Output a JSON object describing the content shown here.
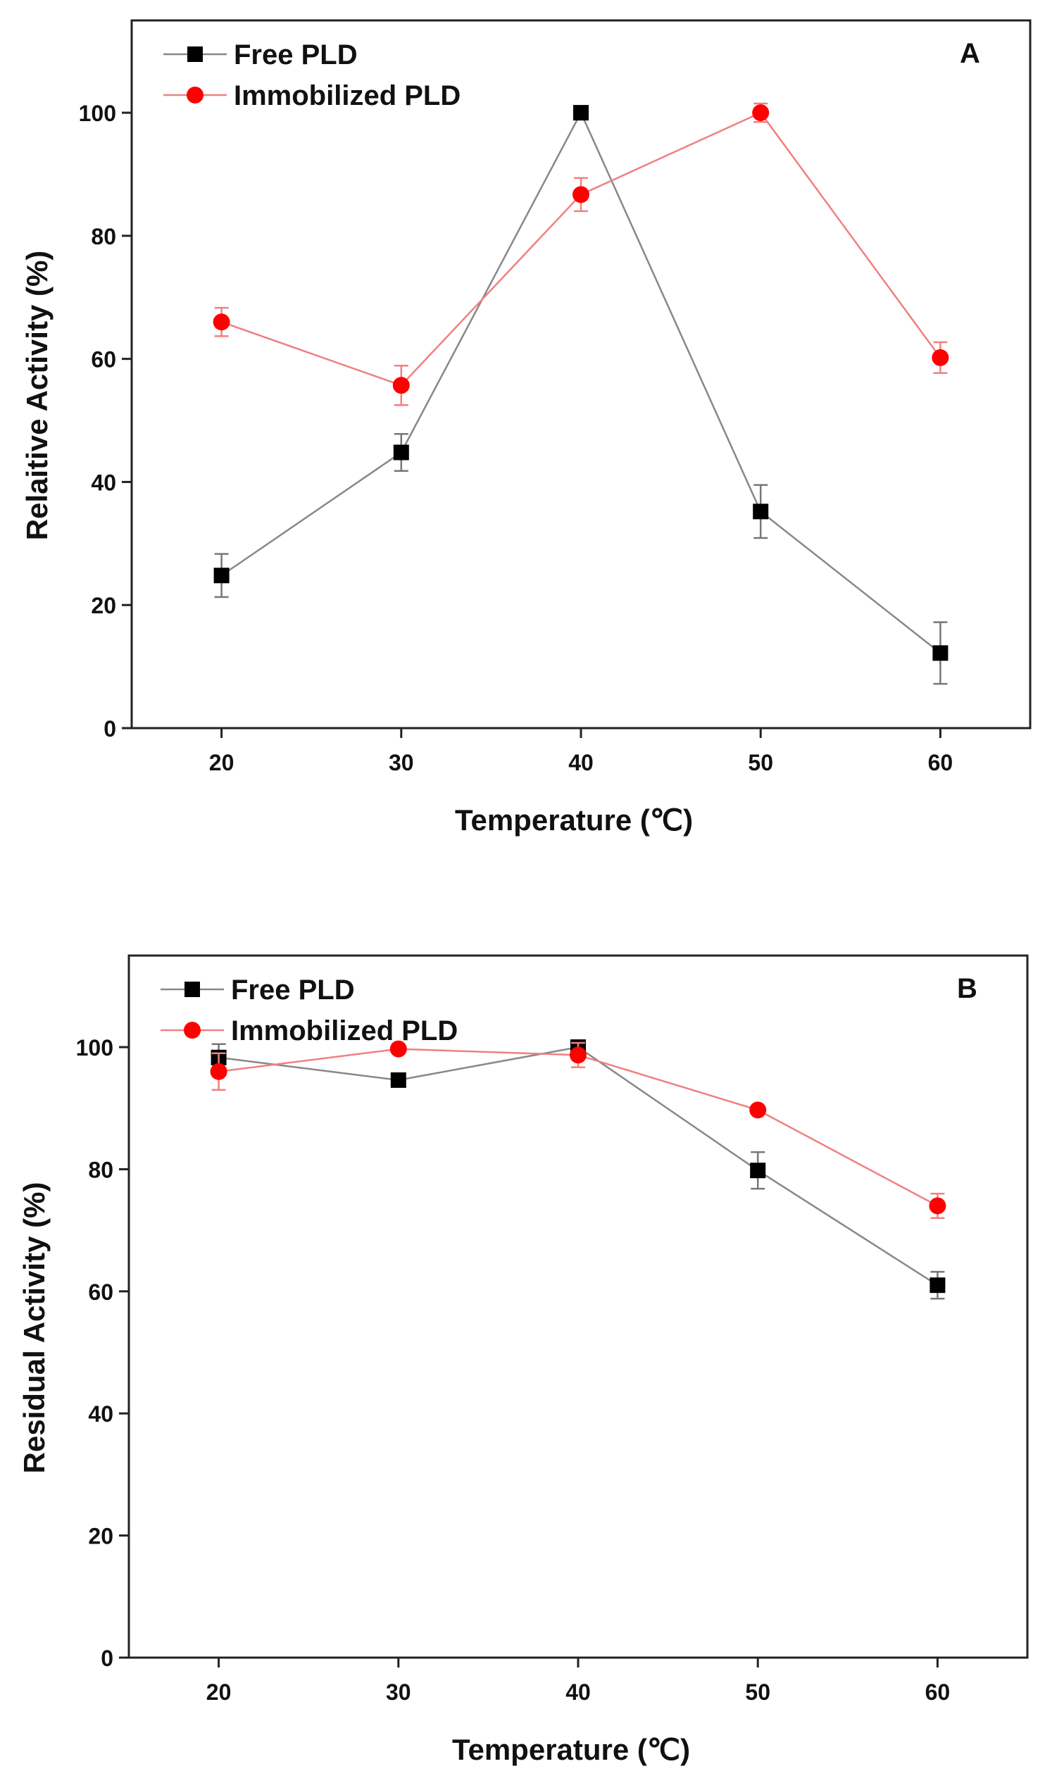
{
  "chart_data": [
    {
      "type": "line",
      "panel_label": "A",
      "xlabel": "Temperature (℃)",
      "ylabel": "Relaitive Activity (%)",
      "x": [
        20,
        30,
        40,
        50,
        60
      ],
      "xticks": [
        "20",
        "30",
        "40",
        "50",
        "60"
      ],
      "yticks": [
        "0",
        "20",
        "40",
        "60",
        "80",
        "100"
      ],
      "xlim": [
        15,
        65
      ],
      "ylim": [
        0,
        115
      ],
      "legend_position": "top-left",
      "series": [
        {
          "name": "Free PLD",
          "color": "#000000",
          "line_color": "#888888",
          "marker": "square",
          "values": [
            24.8,
            44.8,
            100,
            35.2,
            12.2
          ],
          "errors": [
            3.5,
            3.0,
            0.5,
            4.3,
            5.0
          ]
        },
        {
          "name": "Immobilized PLD",
          "color": "#ff0000",
          "line_color": "#f08080",
          "marker": "circle",
          "values": [
            66.0,
            55.7,
            86.7,
            100,
            60.2
          ],
          "errors": [
            2.3,
            3.2,
            2.7,
            1.5,
            2.5
          ]
        }
      ]
    },
    {
      "type": "line",
      "panel_label": "B",
      "xlabel": "Temperature (℃)",
      "ylabel": "Residual Activity (%)",
      "x": [
        20,
        30,
        40,
        50,
        60
      ],
      "xticks": [
        "20",
        "30",
        "40",
        "50",
        "60"
      ],
      "yticks": [
        "0",
        "20",
        "40",
        "60",
        "80",
        "100"
      ],
      "xlim": [
        15,
        65
      ],
      "ylim": [
        0,
        115
      ],
      "legend_position": "top-left",
      "series": [
        {
          "name": "Free PLD",
          "color": "#000000",
          "line_color": "#888888",
          "marker": "square",
          "values": [
            98.3,
            94.6,
            100,
            79.8,
            61.0
          ],
          "errors": [
            2.2,
            0.5,
            0.8,
            3.0,
            2.2
          ]
        },
        {
          "name": "Immobilized PLD",
          "color": "#ff0000",
          "line_color": "#f08080",
          "marker": "circle",
          "values": [
            96.0,
            99.7,
            98.7,
            89.7,
            74.0
          ],
          "errors": [
            3.0,
            0.5,
            2.0,
            0.5,
            2.0
          ]
        }
      ]
    }
  ]
}
